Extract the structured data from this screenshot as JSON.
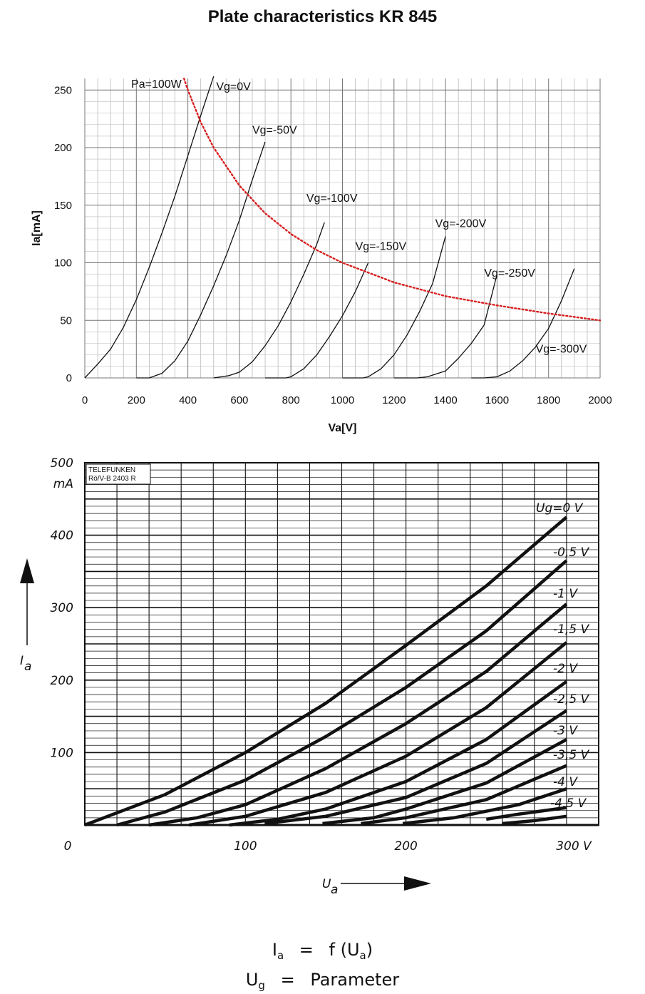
{
  "page": {
    "title": "Plate characteristics KR 845"
  },
  "chart_data": [
    {
      "type": "line",
      "xlabel": "Va[V]",
      "ylabel": "Ia[mA]",
      "xlim": [
        0,
        2000
      ],
      "ylim": [
        0,
        260
      ],
      "xticks": [
        0,
        200,
        400,
        600,
        800,
        1000,
        1200,
        1400,
        1600,
        1800,
        2000
      ],
      "yticks": [
        0,
        50,
        100,
        150,
        200,
        250
      ],
      "grid": true,
      "series": [
        {
          "name": "Vg=0V",
          "x": [
            0,
            25,
            50,
            100,
            150,
            200,
            250,
            300,
            350,
            400,
            450,
            500
          ],
          "y": [
            0,
            6,
            12,
            25,
            44,
            68,
            96,
            126,
            158,
            193,
            228,
            262
          ]
        },
        {
          "name": "Vg=-50V",
          "x": [
            200,
            250,
            300,
            350,
            400,
            450,
            500,
            550,
            600,
            650,
            700
          ],
          "y": [
            0,
            0,
            4,
            15,
            32,
            55,
            80,
            107,
            137,
            172,
            205
          ]
        },
        {
          "name": "Vg=-100V",
          "x": [
            500,
            560,
            600,
            650,
            700,
            750,
            800,
            850,
            900,
            930
          ],
          "y": [
            0,
            2,
            5,
            14,
            28,
            45,
            66,
            90,
            116,
            135
          ]
        },
        {
          "name": "Vg=-150V",
          "x": [
            700,
            780,
            800,
            850,
            900,
            950,
            1000,
            1050,
            1100
          ],
          "y": [
            0,
            0,
            1,
            8,
            20,
            36,
            54,
            75,
            100
          ]
        },
        {
          "name": "Vg=-200V",
          "x": [
            1000,
            1080,
            1100,
            1150,
            1200,
            1250,
            1300,
            1350,
            1400
          ],
          "y": [
            0,
            0,
            1,
            8,
            20,
            37,
            58,
            82,
            123
          ]
        },
        {
          "name": "Vg=-250V",
          "x": [
            1200,
            1290,
            1330,
            1400,
            1450,
            1500,
            1550,
            1600
          ],
          "y": [
            0,
            0,
            1,
            6,
            17,
            30,
            46,
            90
          ]
        },
        {
          "name": "Vg=-300V",
          "x": [
            1500,
            1550,
            1600,
            1650,
            1700,
            1750,
            1800,
            1850,
            1900
          ],
          "y": [
            0,
            0,
            1,
            6,
            15,
            27,
            43,
            67,
            95
          ]
        },
        {
          "name": "Pa=100W",
          "style": "dotted",
          "color": "#d81e1e",
          "x": [
            385,
            400,
            450,
            500,
            600,
            700,
            800,
            900,
            1000,
            1200,
            1400,
            1600,
            1800,
            2000
          ],
          "y": [
            260,
            250,
            222,
            200,
            167,
            143,
            125,
            111,
            100,
            83,
            71,
            63,
            56,
            50
          ]
        }
      ],
      "labels": [
        "Pa=100W",
        "Vg=0V",
        "Vg=-50V",
        "Vg=-100V",
        "Vg=-150V",
        "Vg=-200V",
        "Vg=-250V",
        "Vg=-300V"
      ]
    },
    {
      "type": "line",
      "ylabel": "Ia",
      "yunit": "mA",
      "xlabel": "Ua",
      "xlim": [
        0,
        320
      ],
      "ylim": [
        0,
        500
      ],
      "xticks": [
        "0",
        "100",
        "200",
        "300 V"
      ],
      "yticks": [
        "100",
        "200",
        "300",
        "400",
        "500"
      ],
      "grid": true,
      "stamp": [
        "TELEFUNKEN",
        "Rö/V-B 2403 R"
      ],
      "parameter_label": "Ug",
      "series": [
        {
          "name": "Ug=0 V",
          "x": [
            0,
            50,
            100,
            150,
            200,
            250,
            300
          ],
          "y": [
            0,
            42,
            100,
            168,
            248,
            330,
            425
          ]
        },
        {
          "name": "-0,5 V",
          "x": [
            20,
            50,
            100,
            150,
            200,
            250,
            300
          ],
          "y": [
            0,
            18,
            62,
            122,
            190,
            268,
            365
          ]
        },
        {
          "name": "-1 V",
          "x": [
            40,
            70,
            100,
            150,
            200,
            250,
            300
          ],
          "y": [
            0,
            10,
            28,
            78,
            140,
            212,
            305
          ]
        },
        {
          "name": "-1,5 V",
          "x": [
            65,
            100,
            150,
            200,
            250,
            300
          ],
          "y": [
            0,
            12,
            45,
            95,
            162,
            252
          ]
        },
        {
          "name": "-2 V",
          "x": [
            90,
            120,
            150,
            200,
            250,
            300
          ],
          "y": [
            0,
            8,
            22,
            60,
            118,
            198
          ]
        },
        {
          "name": "-2,5 V",
          "x": [
            112,
            150,
            200,
            250,
            300
          ],
          "y": [
            2,
            12,
            38,
            85,
            158
          ]
        },
        {
          "name": "-3 V",
          "x": [
            148,
            180,
            200,
            250,
            300
          ],
          "y": [
            2,
            10,
            22,
            58,
            118
          ]
        },
        {
          "name": "-3,5 V",
          "x": [
            172,
            200,
            250,
            300
          ],
          "y": [
            2,
            10,
            35,
            82
          ]
        },
        {
          "name": "-4 V",
          "x": [
            198,
            230,
            270,
            300
          ],
          "y": [
            2,
            10,
            28,
            50
          ]
        },
        {
          "name": "-4,5 V",
          "x": [
            250,
            270,
            300
          ],
          "y": [
            8,
            15,
            24
          ]
        },
        {
          "name": "-4,5 V tail",
          "x": [
            260,
            280,
            300
          ],
          "y": [
            2,
            6,
            12
          ]
        }
      ],
      "labels": [
        "Ug=0 V",
        "-0,5 V",
        "-1 V",
        "-1,5 V",
        "-2 V",
        "-2,5 V",
        "-3 V",
        "-3,5 V",
        "-4 V",
        "-4,5 V"
      ]
    }
  ],
  "formulas": {
    "line1": {
      "lhs": "I",
      "lhs_sub": "a",
      "op": "=",
      "rhs": "f (U",
      "rhs_sub": "a",
      "rhs_end": ")"
    },
    "line2": {
      "lhs": "U",
      "lhs_sub": "g",
      "op": "=",
      "rhs": "Parameter"
    }
  }
}
